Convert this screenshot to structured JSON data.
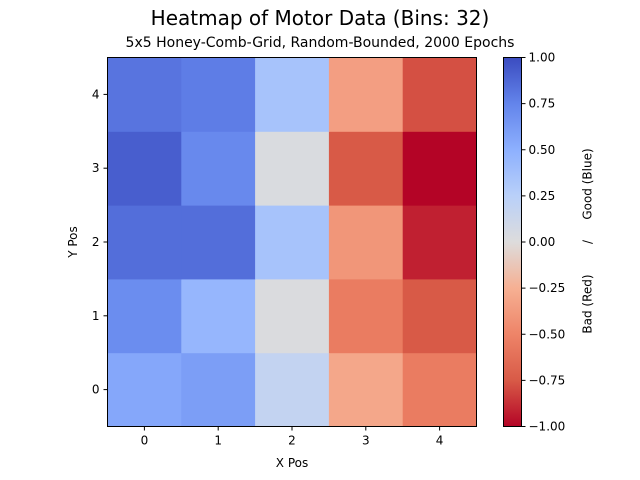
{
  "chart_data": {
    "type": "heatmap",
    "title": "Heatmap of Motor Data (Bins: 32)",
    "subtitle": "5x5 Honey-Comb-Grid, Random-Bounded, 2000 Epochs",
    "xlabel": "X Pos",
    "ylabel": "Y Pos",
    "x_ticks": [
      "0",
      "1",
      "2",
      "3",
      "4"
    ],
    "y_ticks": [
      "0",
      "1",
      "2",
      "3",
      "4"
    ],
    "colormap": "coolwarm_r",
    "vmin": -1.0,
    "vmax": 1.0,
    "colorbar_label_left": "Bad (Red)",
    "colorbar_label_sep": "/",
    "colorbar_label_right": "Good (Blue)",
    "colorbar_ticks": [
      "−1.00",
      "−0.75",
      "−0.50",
      "−0.25",
      "0.00",
      "0.25",
      "0.50",
      "0.75",
      "1.00"
    ],
    "grid": false,
    "values_rows_y0_to_y4": [
      [
        0.55,
        0.6,
        0.18,
        -0.3,
        -0.55
      ],
      [
        0.7,
        0.45,
        0.02,
        -0.55,
        -0.75
      ],
      [
        0.85,
        0.85,
        0.35,
        -0.4,
        -0.92
      ],
      [
        0.92,
        0.72,
        0.03,
        -0.75,
        -1.0
      ],
      [
        0.82,
        0.78,
        0.35,
        -0.35,
        -0.78
      ]
    ]
  }
}
